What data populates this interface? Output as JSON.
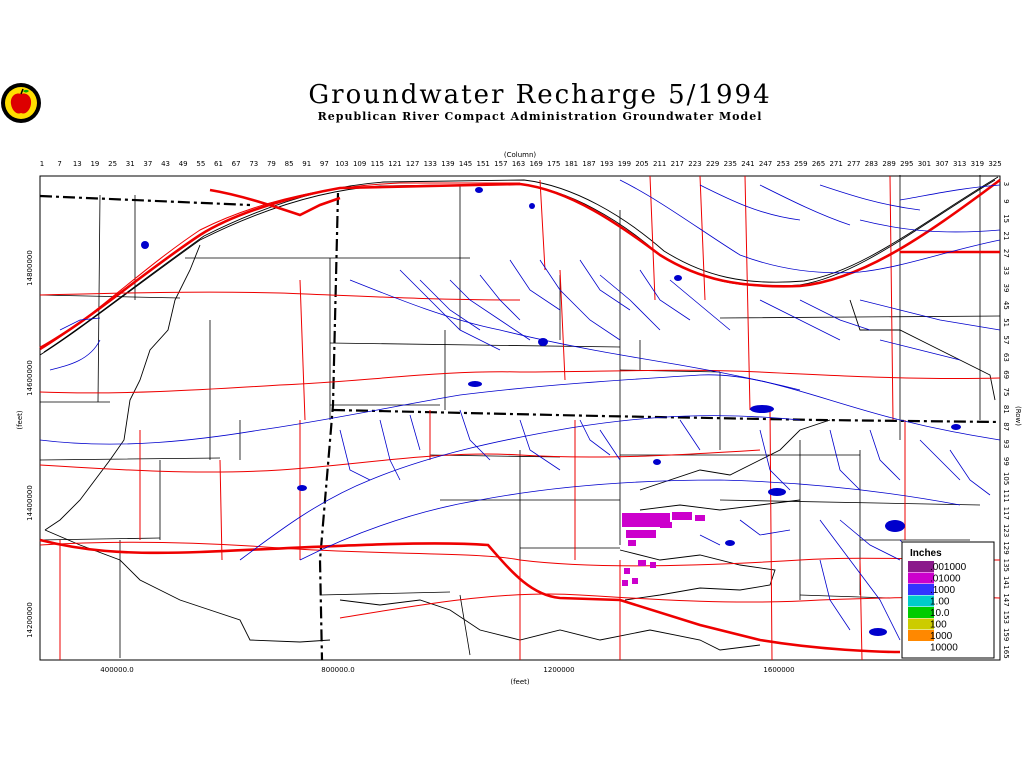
{
  "header": {
    "title": "Groundwater Recharge 5/1994",
    "subtitle": "Republican River Compact Administration Groundwater Model",
    "logo_icon": "apple-seal-logo"
  },
  "map": {
    "top_axis_label": "(Column)",
    "columns": [
      "1",
      "7",
      "13",
      "19",
      "25",
      "31",
      "37",
      "43",
      "49",
      "55",
      "61",
      "67",
      "73",
      "79",
      "85",
      "91",
      "97",
      "103",
      "109",
      "115",
      "121",
      "127",
      "133",
      "139",
      "145",
      "151",
      "157",
      "163",
      "169",
      "175",
      "181",
      "187",
      "193",
      "199",
      "205",
      "211",
      "217",
      "223",
      "229",
      "235",
      "241",
      "247",
      "253",
      "259",
      "265",
      "271",
      "277",
      "283",
      "289",
      "295",
      "301",
      "307",
      "313",
      "319",
      "325"
    ],
    "right_axis_label": "(Row)",
    "rows": [
      "3",
      "9",
      "15",
      "21",
      "27",
      "33",
      "39",
      "45",
      "51",
      "57",
      "63",
      "69",
      "75",
      "81",
      "87",
      "93",
      "99",
      "105",
      "111",
      "117",
      "123",
      "129",
      "135",
      "141",
      "147",
      "153",
      "159",
      "165"
    ],
    "left_axis_label": "(feet)",
    "left_ticks": [
      "14800000",
      "14600000",
      "14400000",
      "14200000"
    ],
    "bottom_axis_label": "(feet)",
    "bottom_ticks": [
      "400000.0",
      "800000.0",
      "1200000",
      "1600000"
    ]
  },
  "legend": {
    "title": "Inches",
    "entries": [
      {
        "label": ".001000",
        "color": "#8b1a8b"
      },
      {
        "label": ".01000",
        "color": "#cc00cc"
      },
      {
        "label": ".1000",
        "color": "#3333ff"
      },
      {
        "label": "1.00",
        "color": "#00cccc"
      },
      {
        "label": "10.0",
        "color": "#00cc00"
      },
      {
        "label": "100",
        "color": "#cccc00"
      },
      {
        "label": "1000",
        "color": "#ff8800"
      },
      {
        "label": "10000",
        "color": "#ffffff"
      }
    ]
  },
  "colors": {
    "river": "#0000cc",
    "road": "#ee0000",
    "boundary": "#000000",
    "recharge": "#cc00cc"
  }
}
